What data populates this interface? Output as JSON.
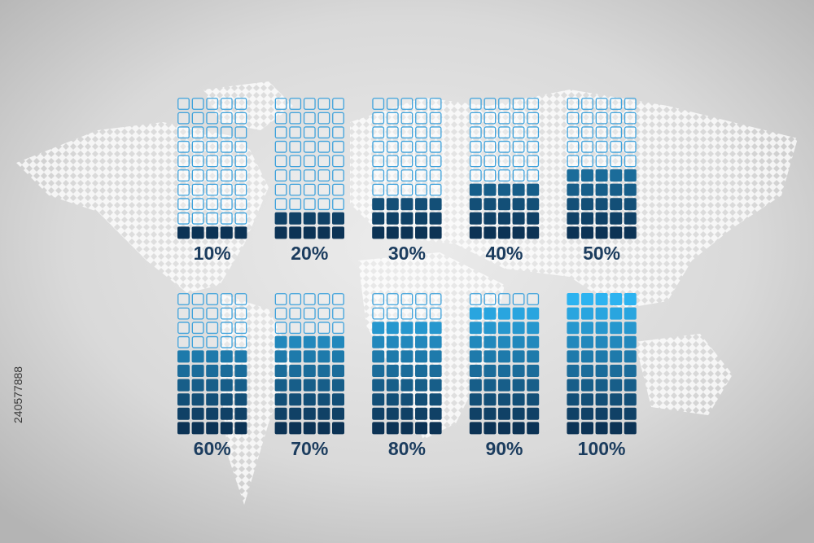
{
  "chart_data": {
    "type": "waffle",
    "values": [
      10,
      20,
      30,
      40,
      50,
      60,
      70,
      80,
      90,
      100
    ],
    "value_labels": [
      "10%",
      "20%",
      "30%",
      "40%",
      "50%",
      "60%",
      "70%",
      "80%",
      "90%",
      "100%"
    ],
    "ylim": [
      0,
      100
    ],
    "color_bottom": "#0c3355",
    "color_top": "#2db3f0",
    "outline_color": "#3ea2dc"
  },
  "watermark_id": "240577888"
}
